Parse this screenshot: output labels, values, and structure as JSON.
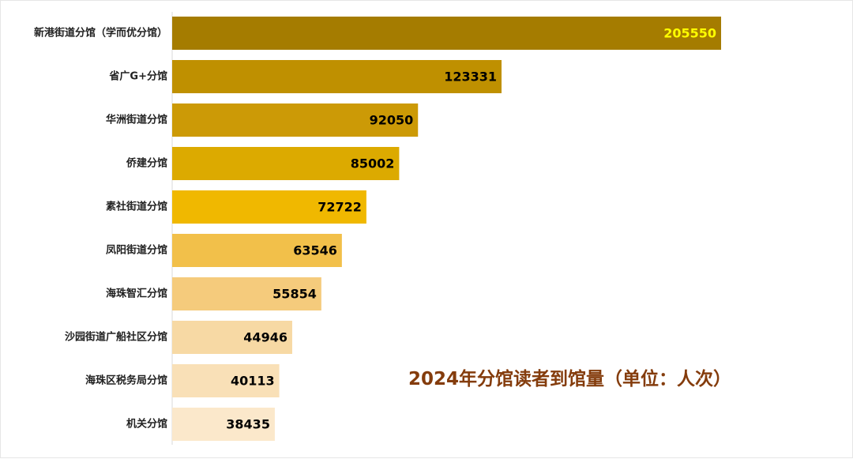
{
  "chart_data": {
    "type": "bar",
    "orientation": "horizontal",
    "title": "2024年分馆读者到馆量（单位：人次）",
    "categories": [
      "新港街道分馆（学而优分馆）",
      "省广G+分馆",
      "华洲街道分馆",
      "侨建分馆",
      "素社街道分馆",
      "凤阳街道分馆",
      "海珠智汇分馆",
      "沙园街道广船社区分馆",
      "海珠区税务局分馆",
      "机关分馆"
    ],
    "values": [
      205550,
      123331,
      92050,
      85002,
      72722,
      63546,
      55854,
      44946,
      40113,
      38435
    ],
    "data_labels": [
      "205550",
      "123331",
      "92050",
      "85002",
      "72722",
      "63546",
      "55854",
      "44946",
      "40113",
      "38435"
    ],
    "bar_colors": [
      "#a57c00",
      "#bf9000",
      "#cc9a06",
      "#dcaa00",
      "#f0b800",
      "#f2c04a",
      "#f5cb7c",
      "#f7d9a4",
      "#f9e0b7",
      "#fbe8cb"
    ],
    "label_colors": [
      "#ffff00",
      "#000000",
      "#000000",
      "#000000",
      "#000000",
      "#000000",
      "#000000",
      "#000000",
      "#000000",
      "#000000"
    ],
    "title_color": "#843c0c",
    "xlim": [
      0,
      205550
    ],
    "grid": false,
    "legend": "none"
  }
}
